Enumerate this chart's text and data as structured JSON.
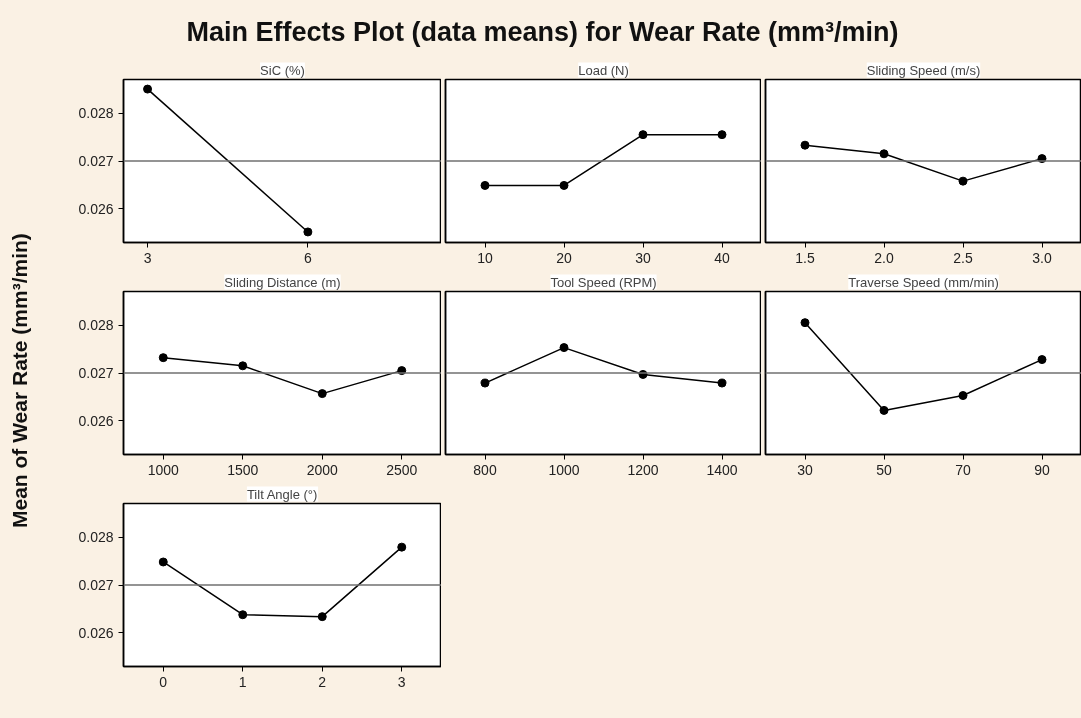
{
  "chart_data": [
    {
      "type": "line",
      "title": "Main Effects Plot (data means) for Wear Rate (mm³/min)",
      "ylabel": "Mean of Wear Rate (mm³/min)",
      "xlabel": "SiC (%)",
      "x": [
        3,
        6
      ],
      "series": [
        {
          "color": "#000000",
          "values": [
            0.0285,
            0.02552
          ]
        }
      ],
      "xlim": [
        2.55,
        8.5
      ],
      "xticks": [
        3,
        6
      ],
      "ylim": [
        0.0253,
        0.0287
      ],
      "yticks": [
        0.026,
        0.027,
        0.028
      ],
      "ref_lines": [
        {
          "axis": "y",
          "value": 0.027,
          "color": "#707070"
        }
      ],
      "marker": "circle",
      "line_style": "solid",
      "grid": false
    },
    {
      "type": "line",
      "xlabel": "Load (N)",
      "x": [
        10,
        20,
        30,
        40
      ],
      "series": [
        {
          "color": "#000000",
          "values": [
            0.02649,
            0.02649,
            0.02755,
            0.02755
          ]
        }
      ],
      "xlim": [
        5,
        45
      ],
      "xticks": [
        10,
        20,
        30,
        40
      ],
      "ylim": [
        0.0253,
        0.0287
      ],
      "ref_lines": [
        {
          "axis": "y",
          "value": 0.027,
          "color": "#707070"
        }
      ],
      "marker": "circle",
      "line_style": "solid",
      "grid": false,
      "tick_labels": "x"
    },
    {
      "type": "line",
      "xlabel": "Sliding Speed (m/s)",
      "x": [
        1.5,
        2,
        2.5,
        3
      ],
      "series": [
        {
          "color": "#000000",
          "values": [
            0.02733,
            0.02715,
            0.02658,
            0.02705
          ]
        }
      ],
      "xlim": [
        1.25,
        3.25
      ],
      "xticks": [
        1.5,
        {
          "value": 2,
          "label": "2.0"
        },
        2.5,
        {
          "value": 3,
          "label": "3.0"
        }
      ],
      "ylim": [
        0.0253,
        0.0287
      ],
      "ref_lines": [
        {
          "axis": "y",
          "value": 0.027,
          "color": "#707070"
        }
      ],
      "marker": "circle",
      "line_style": "solid",
      "grid": false,
      "tick_labels": "x"
    },
    {
      "type": "line",
      "xlabel": "Sliding Distance (m)",
      "x": [
        1000,
        1500,
        2000,
        2500
      ],
      "series": [
        {
          "color": "#000000",
          "values": [
            0.02732,
            0.02715,
            0.02657,
            0.02705
          ]
        }
      ],
      "xlim": [
        750,
        2750
      ],
      "xticks": [
        1000,
        1500,
        2000,
        2500
      ],
      "ylim": [
        0.0253,
        0.0287
      ],
      "yticks": [
        0.026,
        0.027,
        0.028
      ],
      "ref_lines": [
        {
          "axis": "y",
          "value": 0.027,
          "color": "#707070"
        }
      ],
      "marker": "circle",
      "line_style": "solid",
      "grid": false
    },
    {
      "type": "line",
      "xlabel": "Tool Speed (RPM)",
      "x": [
        800,
        1000,
        1200,
        1400
      ],
      "series": [
        {
          "color": "#000000",
          "values": [
            0.02679,
            0.02753,
            0.02697,
            0.02679
          ]
        }
      ],
      "xlim": [
        700,
        1500
      ],
      "xticks": [
        800,
        1000,
        1200,
        1400
      ],
      "ylim": [
        0.0253,
        0.0287
      ],
      "ref_lines": [
        {
          "axis": "y",
          "value": 0.027,
          "color": "#707070"
        }
      ],
      "marker": "circle",
      "line_style": "solid",
      "grid": false,
      "tick_labels": "x"
    },
    {
      "type": "line",
      "xlabel": "Traverse Speed (mm/min)",
      "x": [
        30,
        50,
        70,
        90
      ],
      "series": [
        {
          "color": "#000000",
          "values": [
            0.02805,
            0.02622,
            0.02653,
            0.02728
          ]
        }
      ],
      "xlim": [
        20,
        100
      ],
      "xticks": [
        30,
        50,
        70,
        90
      ],
      "ylim": [
        0.0253,
        0.0287
      ],
      "ref_lines": [
        {
          "axis": "y",
          "value": 0.027,
          "color": "#707070"
        }
      ],
      "marker": "circle",
      "line_style": "solid",
      "grid": false,
      "tick_labels": "x"
    },
    {
      "type": "line",
      "xlabel": "Tilt Angle (°)",
      "x": [
        0,
        1,
        2,
        3
      ],
      "series": [
        {
          "color": "#000000",
          "values": [
            0.02748,
            0.02638,
            0.02634,
            0.02779
          ]
        }
      ],
      "xlim": [
        -0.5,
        3.5
      ],
      "xticks": [
        0,
        1,
        2,
        3
      ],
      "ylim": [
        0.0253,
        0.0287
      ],
      "yticks": [
        0.026,
        0.027,
        0.028
      ],
      "ref_lines": [
        {
          "axis": "y",
          "value": 0.027,
          "color": "#707070"
        }
      ],
      "marker": "circle",
      "line_style": "solid",
      "grid": false
    }
  ]
}
